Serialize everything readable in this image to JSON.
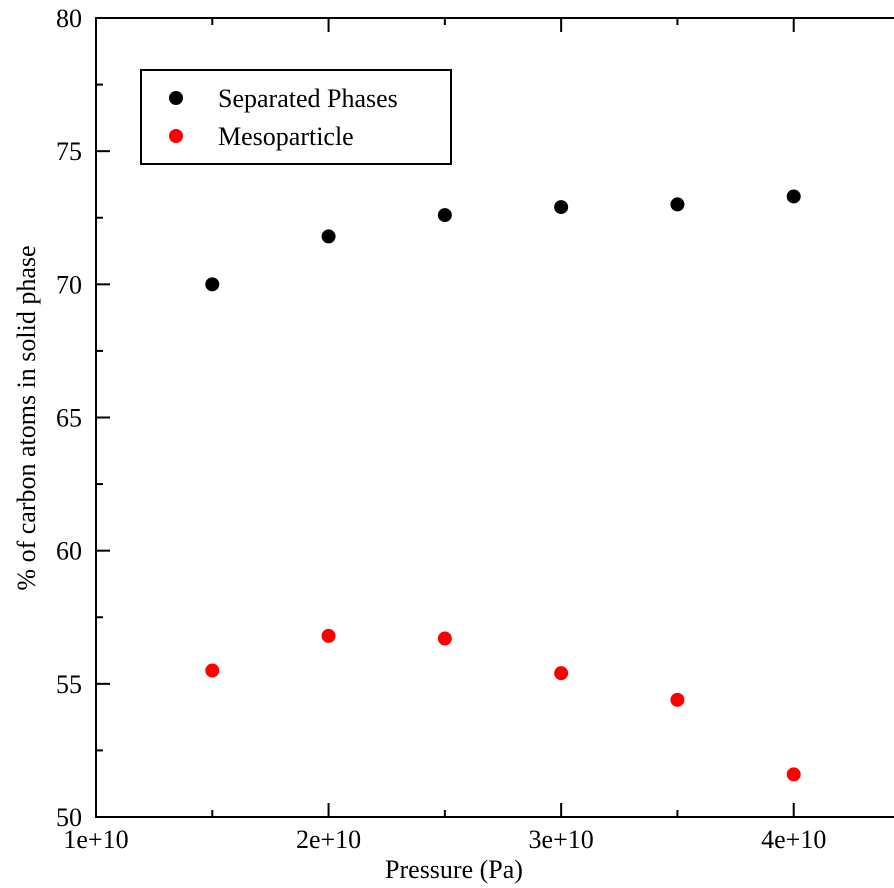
{
  "chart_data": {
    "type": "scatter",
    "title": "",
    "xlabel": "Pressure (Pa)",
    "ylabel": "% of carbon atoms in solid phase",
    "xlim": [
      10000000000,
      45000000000
    ],
    "ylim": [
      50,
      80
    ],
    "x_ticks": [
      10000000000,
      20000000000,
      30000000000,
      40000000000
    ],
    "x_tick_labels": [
      "1e+10",
      "2e+10",
      "3e+10",
      "4e+10"
    ],
    "y_ticks": [
      50,
      55,
      60,
      65,
      70,
      75,
      80
    ],
    "y_tick_labels": [
      "50",
      "55",
      "60",
      "65",
      "70",
      "75",
      "80"
    ],
    "grid": false,
    "legend_position": "top-left",
    "series": [
      {
        "name": "Separated Phases",
        "color": "#000000",
        "x": [
          15000000000,
          20000000000,
          25000000000,
          30000000000,
          35000000000,
          40000000000
        ],
        "y": [
          70.0,
          71.8,
          72.6,
          72.9,
          73.0,
          73.3
        ]
      },
      {
        "name": "Mesoparticle",
        "color": "#ff0000",
        "x": [
          15000000000,
          20000000000,
          25000000000,
          30000000000,
          35000000000,
          40000000000
        ],
        "y": [
          55.5,
          56.8,
          56.7,
          55.4,
          54.4,
          51.6
        ]
      }
    ]
  }
}
